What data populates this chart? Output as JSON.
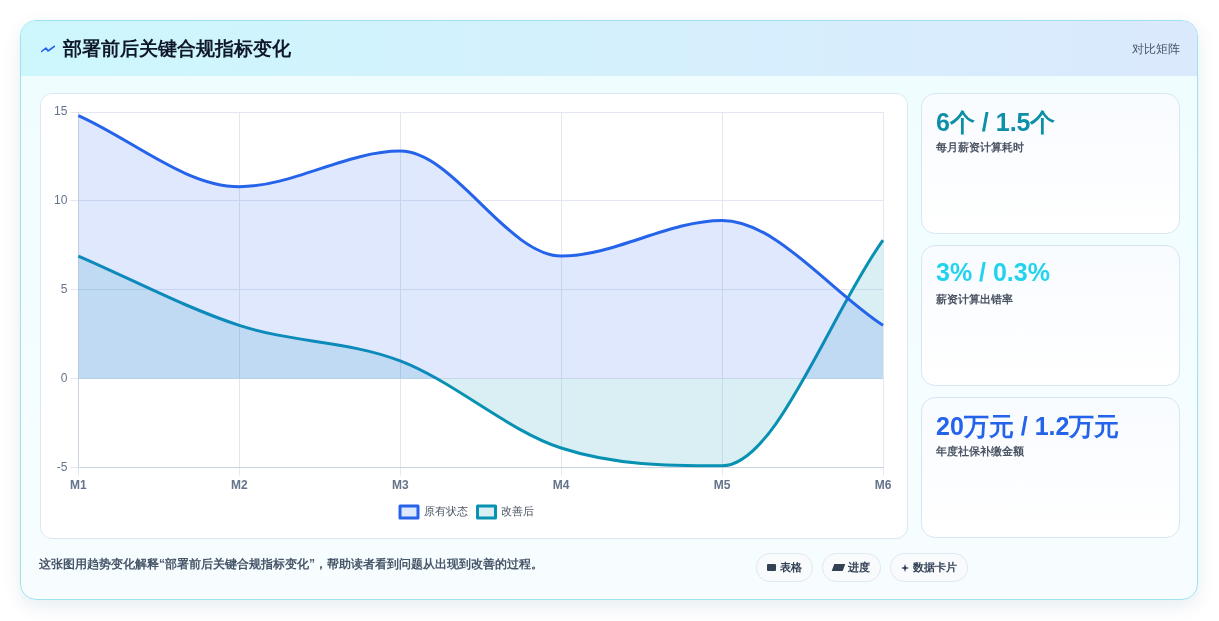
{
  "chart_data": [
    {
      "type": "area",
      "title": "部署前后关键合规指标变化",
      "categories": [
        "M1",
        "M2",
        "M3",
        "M4",
        "M5",
        "M6"
      ],
      "series": [
        {
          "name": "原有状态",
          "color": "#2563eb",
          "values": [
            14.8,
            10.8,
            12.8,
            6.9,
            8.9,
            3
          ]
        },
        {
          "name": "改善后",
          "color": "#0891b2",
          "values": [
            6.9,
            3,
            1,
            -3.9,
            -4.9,
            7.8
          ]
        }
      ],
      "ylim": [
        -5,
        15
      ],
      "yticks": [
        -5,
        0,
        5,
        10,
        15
      ],
      "grid": true,
      "legend": "bottom",
      "annotations": [
        "这张图用趋势变化解释“部署前后关键合规指标变化”，帮助读者看到问题从出现到改善的过程。",
        "表格",
        "进度",
        "数据卡片"
      ]
    },
    {
      "type": "other",
      "title": "对比矩阵",
      "annotations": [
        "6个 / 1.5个",
        "每月薪资计算耗时",
        "3% / 0.3%",
        "薪资计算出错率",
        "20万元 / 1.2万元",
        "年度社保补缴金额"
      ],
      "colors": [
        "#0e8fa8",
        "#22d3ee",
        "#2563eb"
      ]
    }
  ]
}
